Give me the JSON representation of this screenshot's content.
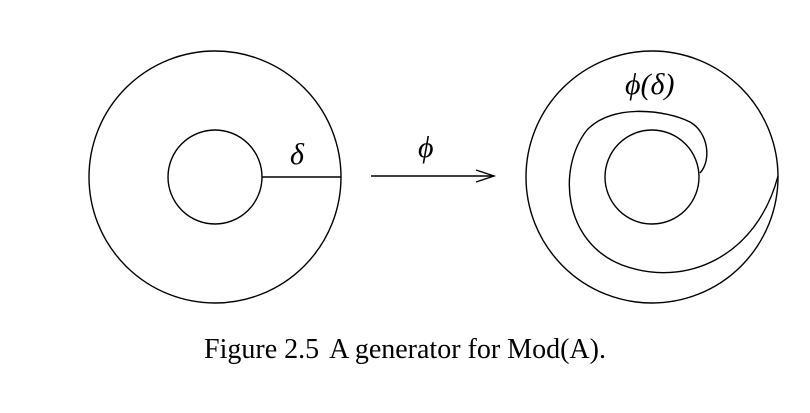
{
  "figure": {
    "delta_label": "δ",
    "phi_label": "ϕ",
    "phi_delta_label": "ϕ(δ)"
  },
  "caption": {
    "number": "Figure 2.5",
    "text": "A generator for Mod(A)."
  },
  "colors": {
    "stroke": "#000000",
    "background": "#ffffff"
  }
}
